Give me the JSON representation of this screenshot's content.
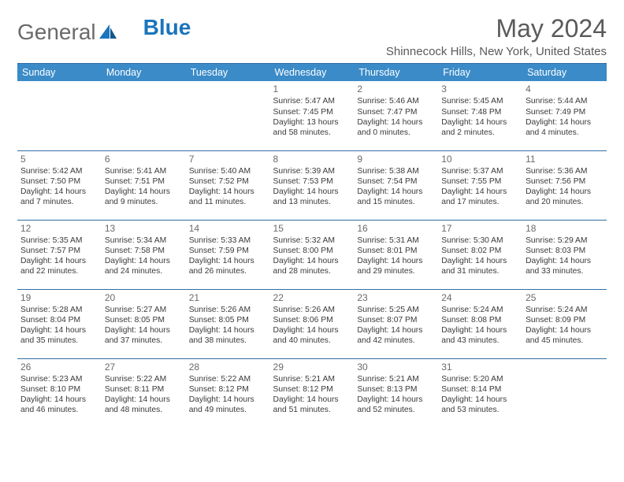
{
  "logo": {
    "text_a": "General",
    "text_b": "Blue"
  },
  "title": "May 2024",
  "location": "Shinnecock Hills, New York, United States",
  "colors": {
    "header_bg": "#3b8bc8",
    "rule": "#2f6fa6",
    "logo_blue": "#1a75bc",
    "text": "#3a3a3a"
  },
  "dow": [
    "Sunday",
    "Monday",
    "Tuesday",
    "Wednesday",
    "Thursday",
    "Friday",
    "Saturday"
  ],
  "weeks": [
    [
      null,
      null,
      null,
      {
        "n": "1",
        "sr": "Sunrise: 5:47 AM",
        "ss": "Sunset: 7:45 PM",
        "dl": "Daylight: 13 hours and 58 minutes."
      },
      {
        "n": "2",
        "sr": "Sunrise: 5:46 AM",
        "ss": "Sunset: 7:47 PM",
        "dl": "Daylight: 14 hours and 0 minutes."
      },
      {
        "n": "3",
        "sr": "Sunrise: 5:45 AM",
        "ss": "Sunset: 7:48 PM",
        "dl": "Daylight: 14 hours and 2 minutes."
      },
      {
        "n": "4",
        "sr": "Sunrise: 5:44 AM",
        "ss": "Sunset: 7:49 PM",
        "dl": "Daylight: 14 hours and 4 minutes."
      }
    ],
    [
      {
        "n": "5",
        "sr": "Sunrise: 5:42 AM",
        "ss": "Sunset: 7:50 PM",
        "dl": "Daylight: 14 hours and 7 minutes."
      },
      {
        "n": "6",
        "sr": "Sunrise: 5:41 AM",
        "ss": "Sunset: 7:51 PM",
        "dl": "Daylight: 14 hours and 9 minutes."
      },
      {
        "n": "7",
        "sr": "Sunrise: 5:40 AM",
        "ss": "Sunset: 7:52 PM",
        "dl": "Daylight: 14 hours and 11 minutes."
      },
      {
        "n": "8",
        "sr": "Sunrise: 5:39 AM",
        "ss": "Sunset: 7:53 PM",
        "dl": "Daylight: 14 hours and 13 minutes."
      },
      {
        "n": "9",
        "sr": "Sunrise: 5:38 AM",
        "ss": "Sunset: 7:54 PM",
        "dl": "Daylight: 14 hours and 15 minutes."
      },
      {
        "n": "10",
        "sr": "Sunrise: 5:37 AM",
        "ss": "Sunset: 7:55 PM",
        "dl": "Daylight: 14 hours and 17 minutes."
      },
      {
        "n": "11",
        "sr": "Sunrise: 5:36 AM",
        "ss": "Sunset: 7:56 PM",
        "dl": "Daylight: 14 hours and 20 minutes."
      }
    ],
    [
      {
        "n": "12",
        "sr": "Sunrise: 5:35 AM",
        "ss": "Sunset: 7:57 PM",
        "dl": "Daylight: 14 hours and 22 minutes."
      },
      {
        "n": "13",
        "sr": "Sunrise: 5:34 AM",
        "ss": "Sunset: 7:58 PM",
        "dl": "Daylight: 14 hours and 24 minutes."
      },
      {
        "n": "14",
        "sr": "Sunrise: 5:33 AM",
        "ss": "Sunset: 7:59 PM",
        "dl": "Daylight: 14 hours and 26 minutes."
      },
      {
        "n": "15",
        "sr": "Sunrise: 5:32 AM",
        "ss": "Sunset: 8:00 PM",
        "dl": "Daylight: 14 hours and 28 minutes."
      },
      {
        "n": "16",
        "sr": "Sunrise: 5:31 AM",
        "ss": "Sunset: 8:01 PM",
        "dl": "Daylight: 14 hours and 29 minutes."
      },
      {
        "n": "17",
        "sr": "Sunrise: 5:30 AM",
        "ss": "Sunset: 8:02 PM",
        "dl": "Daylight: 14 hours and 31 minutes."
      },
      {
        "n": "18",
        "sr": "Sunrise: 5:29 AM",
        "ss": "Sunset: 8:03 PM",
        "dl": "Daylight: 14 hours and 33 minutes."
      }
    ],
    [
      {
        "n": "19",
        "sr": "Sunrise: 5:28 AM",
        "ss": "Sunset: 8:04 PM",
        "dl": "Daylight: 14 hours and 35 minutes."
      },
      {
        "n": "20",
        "sr": "Sunrise: 5:27 AM",
        "ss": "Sunset: 8:05 PM",
        "dl": "Daylight: 14 hours and 37 minutes."
      },
      {
        "n": "21",
        "sr": "Sunrise: 5:26 AM",
        "ss": "Sunset: 8:05 PM",
        "dl": "Daylight: 14 hours and 38 minutes."
      },
      {
        "n": "22",
        "sr": "Sunrise: 5:26 AM",
        "ss": "Sunset: 8:06 PM",
        "dl": "Daylight: 14 hours and 40 minutes."
      },
      {
        "n": "23",
        "sr": "Sunrise: 5:25 AM",
        "ss": "Sunset: 8:07 PM",
        "dl": "Daylight: 14 hours and 42 minutes."
      },
      {
        "n": "24",
        "sr": "Sunrise: 5:24 AM",
        "ss": "Sunset: 8:08 PM",
        "dl": "Daylight: 14 hours and 43 minutes."
      },
      {
        "n": "25",
        "sr": "Sunrise: 5:24 AM",
        "ss": "Sunset: 8:09 PM",
        "dl": "Daylight: 14 hours and 45 minutes."
      }
    ],
    [
      {
        "n": "26",
        "sr": "Sunrise: 5:23 AM",
        "ss": "Sunset: 8:10 PM",
        "dl": "Daylight: 14 hours and 46 minutes."
      },
      {
        "n": "27",
        "sr": "Sunrise: 5:22 AM",
        "ss": "Sunset: 8:11 PM",
        "dl": "Daylight: 14 hours and 48 minutes."
      },
      {
        "n": "28",
        "sr": "Sunrise: 5:22 AM",
        "ss": "Sunset: 8:12 PM",
        "dl": "Daylight: 14 hours and 49 minutes."
      },
      {
        "n": "29",
        "sr": "Sunrise: 5:21 AM",
        "ss": "Sunset: 8:12 PM",
        "dl": "Daylight: 14 hours and 51 minutes."
      },
      {
        "n": "30",
        "sr": "Sunrise: 5:21 AM",
        "ss": "Sunset: 8:13 PM",
        "dl": "Daylight: 14 hours and 52 minutes."
      },
      {
        "n": "31",
        "sr": "Sunrise: 5:20 AM",
        "ss": "Sunset: 8:14 PM",
        "dl": "Daylight: 14 hours and 53 minutes."
      },
      null
    ]
  ]
}
